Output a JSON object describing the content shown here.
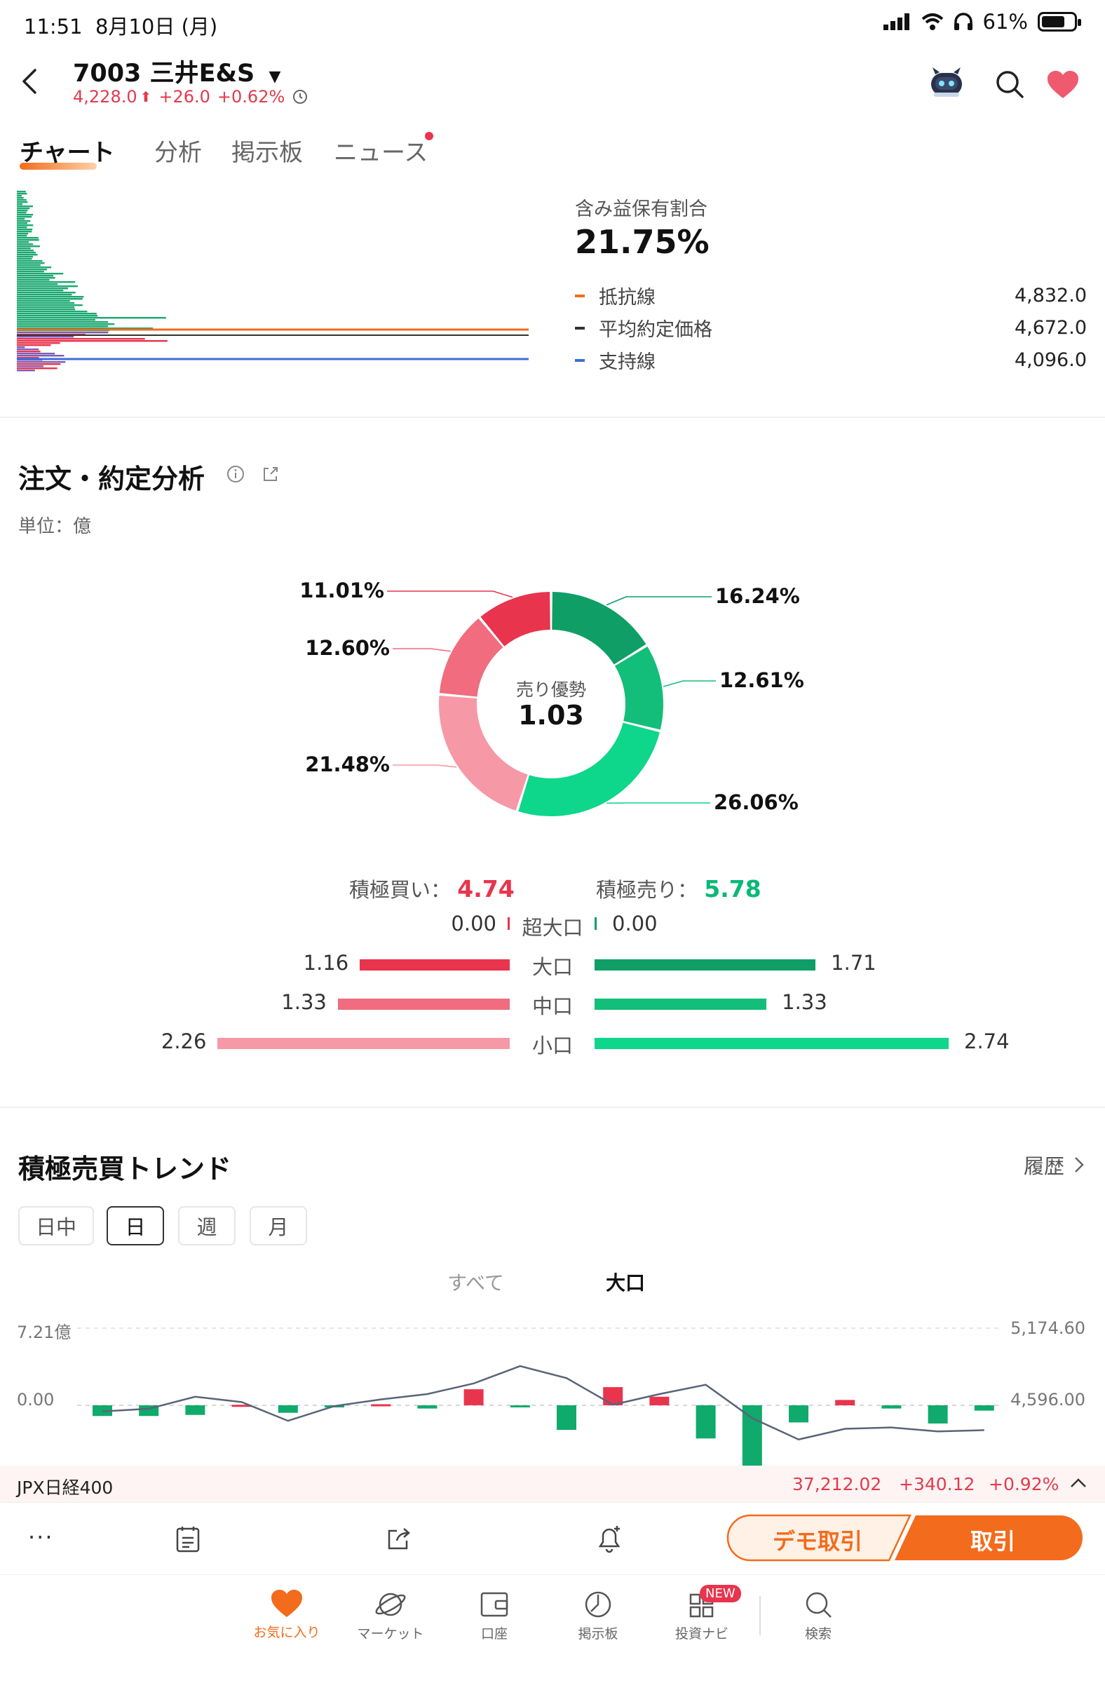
{
  "status_bar": {
    "time": "11:51",
    "date": "8月10日 (月)",
    "battery": "61%"
  },
  "header": {
    "code_name": "7003 三井E&S",
    "price": "4,228.0",
    "change": "+26.0",
    "change_pct": "+0.62%"
  },
  "tabs": [
    {
      "label": "チャート"
    },
    {
      "label": "分析"
    },
    {
      "label": "掲示板"
    },
    {
      "label": "ニュース"
    }
  ],
  "profile": {
    "title": "含み益保有割合",
    "ratio": "21.75%",
    "lines": [
      {
        "label": "抵抗線",
        "value": "4,832.0",
        "color": "#f36b1c"
      },
      {
        "label": "平均約定価格",
        "value": "4,672.0",
        "color": "#333333"
      },
      {
        "label": "支持線",
        "value": "4,096.0",
        "color": "#3b6fd8"
      }
    ]
  },
  "order_analysis": {
    "title": "注文・約定分析",
    "unit": "単位：億",
    "center_label": "売り優勢",
    "center_value": "1.03",
    "donut": [
      {
        "label": "16.24%",
        "value": 16.24,
        "color": "#0e9e66"
      },
      {
        "label": "12.61%",
        "value": 12.61,
        "color": "#12be79"
      },
      {
        "label": "26.06%",
        "value": 26.06,
        "color": "#0ed68a"
      },
      {
        "label": "21.48%",
        "value": 21.48,
        "color": "#f798a6"
      },
      {
        "label": "12.60%",
        "value": 12.6,
        "color": "#f06c7e"
      },
      {
        "label": "11.01%",
        "value": 11.01,
        "color": "#e8344d"
      }
    ],
    "buy_label": "積極買い：",
    "buy_value": "4.74",
    "sell_label": "積極売り：",
    "sell_value": "5.78",
    "rows": [
      {
        "category": "超大口",
        "buy": "0.00",
        "sell": "0.00",
        "buy_v": 0.0,
        "sell_v": 0.0,
        "buy_color": "#e8344d",
        "sell_color": "#0e9e66"
      },
      {
        "category": "大口",
        "buy": "1.16",
        "sell": "1.71",
        "buy_v": 1.16,
        "sell_v": 1.71,
        "buy_color": "#e8344d",
        "sell_color": "#0e9e66"
      },
      {
        "category": "中口",
        "buy": "1.33",
        "sell": "1.33",
        "buy_v": 1.33,
        "sell_v": 1.33,
        "buy_color": "#f06c7e",
        "sell_color": "#12be79"
      },
      {
        "category": "小口",
        "buy": "2.26",
        "sell": "2.74",
        "buy_v": 2.26,
        "sell_v": 2.74,
        "buy_color": "#f798a6",
        "sell_color": "#0ed68a"
      }
    ]
  },
  "trend": {
    "title": "積極売買トレンド",
    "history": "履歴",
    "periods": [
      "日中",
      "日",
      "週",
      "月"
    ],
    "active_period": "日",
    "filters": [
      "すべて",
      "大口"
    ],
    "active_filter": "大口",
    "y_left": [
      "7.21億",
      "0.00"
    ],
    "y_right": [
      "5,174.60",
      "4,596.00"
    ]
  },
  "chart_data": {
    "type": "bar",
    "series": [
      {
        "values": [
          -1.0,
          -1.0,
          -0.9,
          0.05,
          -0.7,
          -0.1,
          0.1,
          -0.3,
          1.5,
          -0.1,
          -2.3,
          1.7,
          0.8,
          -3.1,
          -5.7,
          -1.6,
          0.5,
          -0.3,
          -1.7,
          -0.5
        ]
      },
      {
        "values": [
          4550,
          4570,
          4660,
          4620,
          4480,
          4590,
          4640,
          4680,
          4760,
          4890,
          4800,
          4600,
          4680,
          4750,
          4500,
          4340,
          4420,
          4430,
          4400,
          4410
        ]
      }
    ],
    "ylim_left": [
      -7.21,
      7.21
    ],
    "ylim_right": [
      4017.4,
      5174.6
    ]
  },
  "ticker": {
    "name": "JPX日経400",
    "value": "37,212.02",
    "change": "+340.12",
    "pct": "+0.92%"
  },
  "toolbar": {
    "demo": "デモ取引",
    "trade": "取引"
  },
  "nav": [
    {
      "label": "お気に入り"
    },
    {
      "label": "マーケット"
    },
    {
      "label": "口座"
    },
    {
      "label": "掲示板"
    },
    {
      "label": "投資ナビ",
      "badge": "NEW"
    },
    {
      "label": "検索"
    }
  ]
}
